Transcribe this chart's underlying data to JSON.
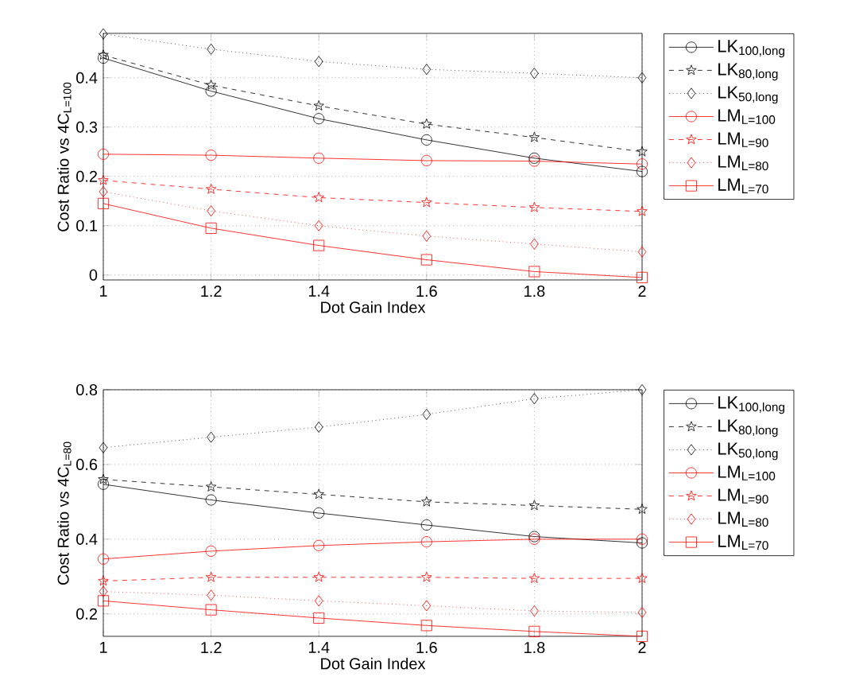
{
  "chart_data": [
    {
      "type": "line",
      "xlabel": "Dot Gain Index",
      "ylabel": "Cost Ratio vs 4C$_{L=100}$",
      "x": [
        1,
        1.2,
        1.4,
        1.6,
        1.8,
        2
      ],
      "xlim": [
        1,
        2
      ],
      "xticks": [
        1,
        1.2,
        1.4,
        1.6,
        1.8,
        2
      ],
      "ylim": [
        -0.01,
        0.49
      ],
      "yticks": [
        0,
        0.1,
        0.2,
        0.3,
        0.4
      ],
      "grid": true,
      "legend": "right",
      "series": [
        {
          "name": "LK$_{100,long}$",
          "color": "#000000",
          "marker": "circle",
          "line_style": "solid",
          "values": [
            0.44,
            0.373,
            0.317,
            0.274,
            0.237,
            0.21
          ]
        },
        {
          "name": "LK$_{80,long}$",
          "color": "#000000",
          "marker": "star",
          "line_style": "dashed",
          "values": [
            0.446,
            0.385,
            0.343,
            0.306,
            0.279,
            0.25
          ]
        },
        {
          "name": "LK$_{50,long}$",
          "color": "#000000",
          "marker": "diamond",
          "line_style": "dotted",
          "values": [
            0.489,
            0.458,
            0.433,
            0.417,
            0.409,
            0.4
          ]
        },
        {
          "name": "LM$_{L=100}$",
          "color": "#ff0000",
          "marker": "circle",
          "line_style": "solid",
          "values": [
            0.245,
            0.243,
            0.237,
            0.232,
            0.231,
            0.225
          ]
        },
        {
          "name": "LM$_{L=90}$",
          "color": "#ff0000",
          "marker": "star",
          "line_style": "dashed",
          "values": [
            0.192,
            0.174,
            0.157,
            0.147,
            0.137,
            0.129
          ]
        },
        {
          "name": "LM$_{L=80}$",
          "color": "#ff0000",
          "marker": "diamond",
          "line_style": "dotted",
          "values": [
            0.169,
            0.13,
            0.1,
            0.079,
            0.063,
            0.047
          ]
        },
        {
          "name": "LM$_{L=70}$",
          "color": "#ff0000",
          "marker": "square",
          "line_style": "solid",
          "values": [
            0.145,
            0.095,
            0.06,
            0.031,
            0.007,
            -0.005
          ]
        }
      ]
    },
    {
      "type": "line",
      "xlabel": "Dot Gain Index",
      "ylabel": "Cost Ratio vs 4C$_{L=80}$",
      "x": [
        1,
        1.2,
        1.4,
        1.6,
        1.8,
        2
      ],
      "xlim": [
        1,
        2
      ],
      "xticks": [
        1,
        1.2,
        1.4,
        1.6,
        1.8,
        2
      ],
      "ylim": [
        0.14,
        0.8
      ],
      "yticks": [
        0.2,
        0.4,
        0.6,
        0.8
      ],
      "grid": true,
      "legend": "right",
      "series": [
        {
          "name": "LK$_{100,long}$",
          "color": "#000000",
          "marker": "circle",
          "line_style": "solid",
          "values": [
            0.547,
            0.505,
            0.47,
            0.438,
            0.407,
            0.39
          ]
        },
        {
          "name": "LK$_{80,long}$",
          "color": "#000000",
          "marker": "star",
          "line_style": "dashed",
          "values": [
            0.56,
            0.54,
            0.52,
            0.5,
            0.49,
            0.48
          ]
        },
        {
          "name": "LK$_{50,long}$",
          "color": "#000000",
          "marker": "diamond",
          "line_style": "dotted",
          "values": [
            0.645,
            0.673,
            0.7,
            0.734,
            0.776,
            0.8
          ]
        },
        {
          "name": "LM$_{L=100}$",
          "color": "#ff0000",
          "marker": "circle",
          "line_style": "solid",
          "values": [
            0.347,
            0.368,
            0.383,
            0.393,
            0.4,
            0.4
          ]
        },
        {
          "name": "LM$_{L=90}$",
          "color": "#ff0000",
          "marker": "star",
          "line_style": "dashed",
          "values": [
            0.288,
            0.298,
            0.298,
            0.298,
            0.295,
            0.295
          ]
        },
        {
          "name": "LM$_{L=80}$",
          "color": "#ff0000",
          "marker": "diamond",
          "line_style": "dotted",
          "values": [
            0.26,
            0.25,
            0.235,
            0.222,
            0.208,
            0.204
          ]
        },
        {
          "name": "LM$_{L=70}$",
          "color": "#ff0000",
          "marker": "square",
          "line_style": "solid",
          "values": [
            0.235,
            0.211,
            0.189,
            0.169,
            0.153,
            0.14
          ]
        }
      ]
    }
  ]
}
